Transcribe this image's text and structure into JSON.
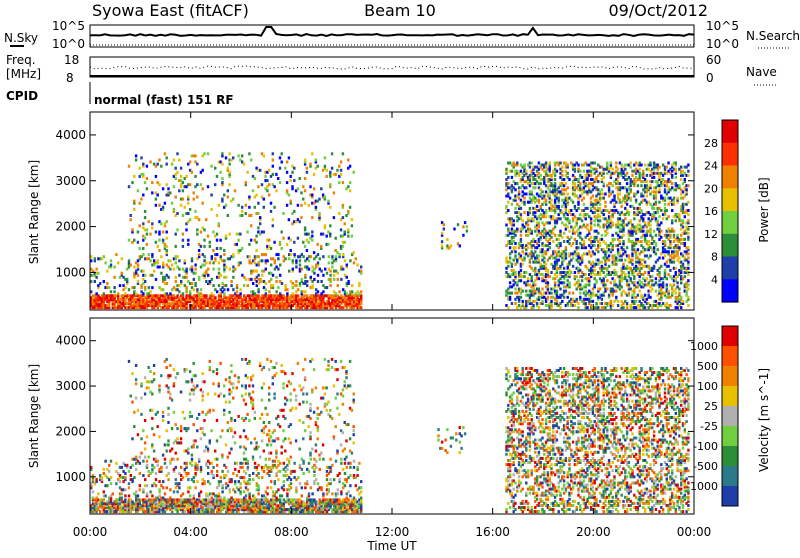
{
  "header": {
    "station": "Syowa East (fitACF)",
    "beam": "Beam 10",
    "date": "09/Oct/2012"
  },
  "status_panels": {
    "nsky_label": "N.Sky",
    "nsearch_label": "N.Search",
    "log_top": "10^5",
    "log_bottom": "10^0",
    "freq_label": "Freq.",
    "freq_unit": "[MHz]",
    "freq_ticks": [
      "18",
      "8"
    ],
    "nave_label": "Nave",
    "nave_ticks": [
      "60",
      "0"
    ],
    "cpid_label": "CPID",
    "cpid_value": "normal (fast) 151 RF"
  },
  "chart_data": [
    {
      "type": "heatmap",
      "title": "",
      "xlabel": "Time UT",
      "ylabel": "Slant Range [km]",
      "x_ticks": [
        "00:00",
        "04:00",
        "08:00",
        "12:00",
        "16:00",
        "20:00",
        "00:00"
      ],
      "y_ticks": [
        "1000",
        "2000",
        "3000",
        "4000"
      ],
      "xlim": [
        0,
        24
      ],
      "ylim": [
        180,
        4500
      ],
      "colorbar": {
        "label": "Power [dB]",
        "ticks": [
          "4",
          "8",
          "12",
          "16",
          "20",
          "24",
          "28"
        ],
        "colors": [
          "#0000ff",
          "#1e3fa8",
          "#2b8f3a",
          "#6fcf3f",
          "#e8c000",
          "#f08000",
          "#ff3000",
          "#e00000"
        ]
      },
      "echo_regions": [
        {
          "t0": 0.0,
          "t1": 10.8,
          "r0": 200,
          "r1": 500,
          "intensity": "high"
        },
        {
          "t0": 0.0,
          "t1": 10.8,
          "r0": 500,
          "r1": 1400,
          "intensity": "scattered"
        },
        {
          "t0": 1.5,
          "t1": 10.5,
          "r0": 1400,
          "r1": 3600,
          "intensity": "sparse"
        },
        {
          "t0": 13.8,
          "t1": 15.0,
          "r0": 1500,
          "r1": 2100,
          "intensity": "sparse"
        },
        {
          "t0": 16.5,
          "t1": 23.8,
          "r0": 200,
          "r1": 3400,
          "intensity": "medium"
        }
      ]
    },
    {
      "type": "heatmap",
      "title": "",
      "xlabel": "Time UT",
      "ylabel": "Slant Range [km]",
      "x_ticks": [
        "00:00",
        "04:00",
        "08:00",
        "12:00",
        "16:00",
        "20:00",
        "00:00"
      ],
      "y_ticks": [
        "1000",
        "2000",
        "3000",
        "4000"
      ],
      "xlim": [
        0,
        24
      ],
      "ylim": [
        180,
        4500
      ],
      "colorbar": {
        "label": "Velocity [m s^-1]",
        "ticks": [
          "1000",
          "500",
          "100",
          "25",
          "-25",
          "-100",
          "-500",
          "-1000"
        ],
        "colors": [
          "#1e3fa8",
          "#2a7a8a",
          "#2b8f3a",
          "#6fcf3f",
          "#b0b0b0",
          "#e8c000",
          "#f08000",
          "#ff5000",
          "#e00000"
        ]
      },
      "echo_regions": [
        {
          "t0": 0.0,
          "t1": 10.8,
          "r0": 200,
          "r1": 500,
          "intensity": "high"
        },
        {
          "t0": 0.0,
          "t1": 10.8,
          "r0": 500,
          "r1": 1400,
          "intensity": "scattered"
        },
        {
          "t0": 1.5,
          "t1": 10.5,
          "r0": 1400,
          "r1": 3600,
          "intensity": "sparse"
        },
        {
          "t0": 13.8,
          "t1": 15.0,
          "r0": 1500,
          "r1": 2100,
          "intensity": "sparse"
        },
        {
          "t0": 16.5,
          "t1": 23.8,
          "r0": 200,
          "r1": 3400,
          "intensity": "medium"
        }
      ]
    }
  ]
}
